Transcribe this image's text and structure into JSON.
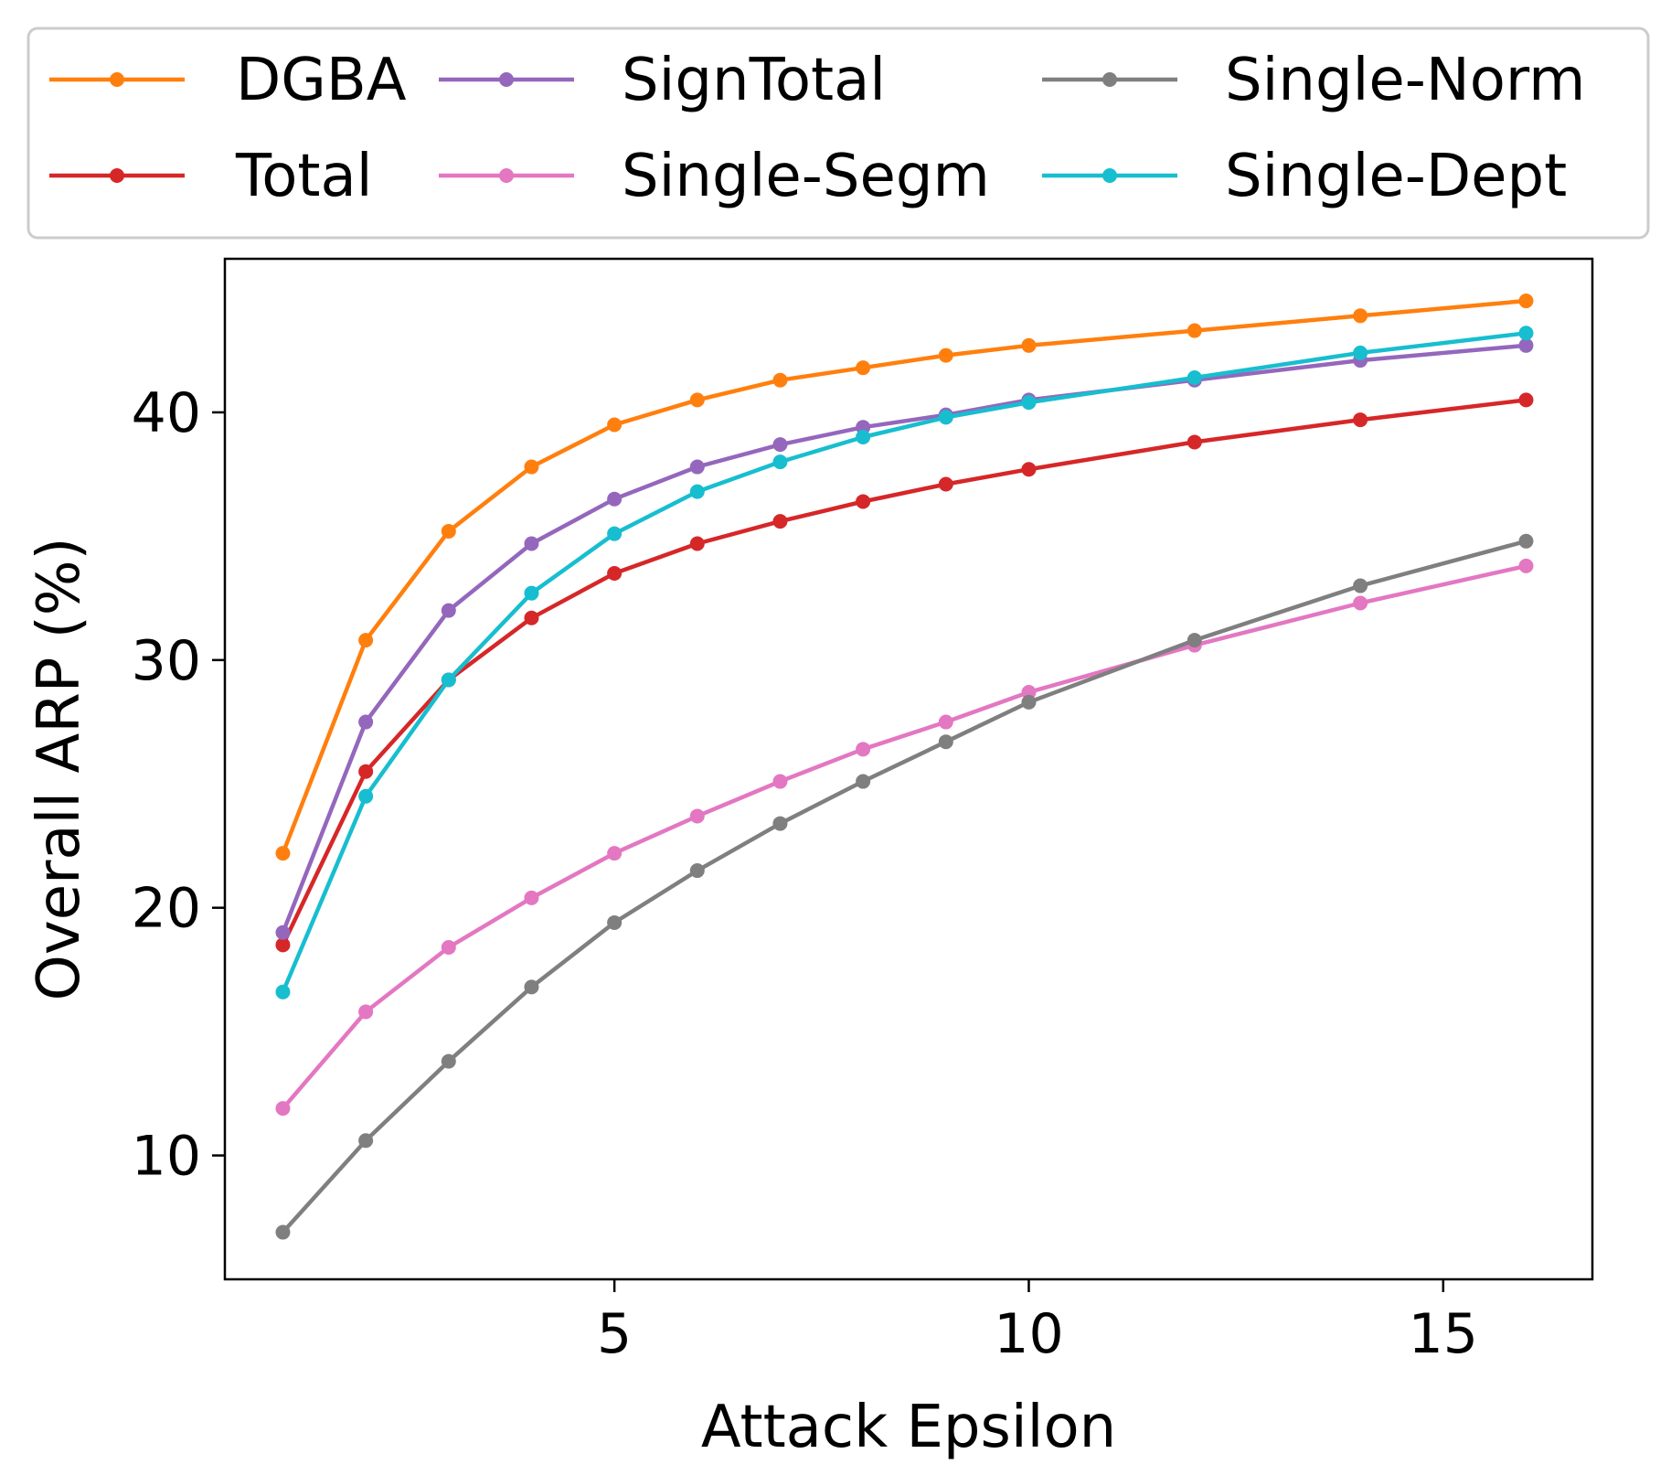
{
  "chart_data": {
    "type": "line",
    "title": "",
    "xlabel": "Attack Epsilon",
    "ylabel": "Overall ARP (%)",
    "xlim": [
      0.3,
      16.8
    ],
    "ylim": [
      5.0,
      46.2
    ],
    "xticks": [
      5,
      10,
      15
    ],
    "yticks": [
      10,
      20,
      30,
      40
    ],
    "x": [
      1,
      2,
      3,
      4,
      5,
      6,
      7,
      8,
      9,
      10,
      12,
      14,
      16
    ],
    "legend_position": "top",
    "series": [
      {
        "name": "DGBA",
        "color": "#ff7f0e",
        "values": [
          22.2,
          30.8,
          35.2,
          37.8,
          39.5,
          40.5,
          41.3,
          41.8,
          42.3,
          42.7,
          43.3,
          43.9,
          44.5
        ]
      },
      {
        "name": "Total",
        "color": "#d62728",
        "values": [
          18.5,
          25.5,
          29.2,
          31.7,
          33.5,
          34.7,
          35.6,
          36.4,
          37.1,
          37.7,
          38.8,
          39.7,
          40.5
        ]
      },
      {
        "name": "SignTotal",
        "color": "#9467bd",
        "values": [
          19.0,
          27.5,
          32.0,
          34.7,
          36.5,
          37.8,
          38.7,
          39.4,
          39.9,
          40.5,
          41.3,
          42.1,
          42.7
        ]
      },
      {
        "name": "Single-Segm",
        "color": "#e377c2",
        "values": [
          11.9,
          15.8,
          18.4,
          20.4,
          22.2,
          23.7,
          25.1,
          26.4,
          27.5,
          28.7,
          30.6,
          32.3,
          33.8
        ]
      },
      {
        "name": "Single-Norm",
        "color": "#7f7f7f",
        "values": [
          6.9,
          10.6,
          13.8,
          16.8,
          19.4,
          21.5,
          23.4,
          25.1,
          26.7,
          28.3,
          30.8,
          33.0,
          34.8
        ]
      },
      {
        "name": "Single-Dept",
        "color": "#17becf",
        "values": [
          16.6,
          24.5,
          29.2,
          32.7,
          35.1,
          36.8,
          38.0,
          39.0,
          39.8,
          40.4,
          41.4,
          42.4,
          43.2
        ]
      }
    ]
  }
}
